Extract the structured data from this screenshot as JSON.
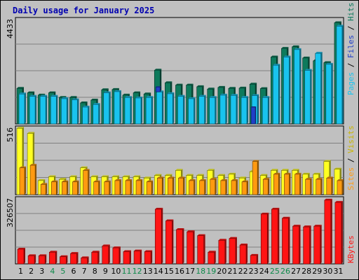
{
  "title": "Daily usage for January 2025",
  "colors": {
    "hits": "#0e7a5c",
    "files": "#19c3ee",
    "pages": "#1f3fc8",
    "visits": "#ffff22",
    "sites": "#ff9a10",
    "kbytes": "#ff1414",
    "weekend_label": "#0e8a4a",
    "weekday_label": "#000000",
    "grid": "#808080",
    "panel_bg": "#c0c0c0"
  },
  "labels": {
    "pages": "Pages",
    "files": "Files",
    "hits": "Hits",
    "sites": "Sites",
    "visits": "Visits",
    "kbytes": "KBytes",
    "sep": " / "
  },
  "chart_data": [
    {
      "type": "bar",
      "title": "Daily usage for January 2025",
      "ymax_label": "4433",
      "ylim": [
        0,
        4433
      ],
      "categories": [
        "1",
        "2",
        "3",
        "4",
        "5",
        "6",
        "7",
        "8",
        "9",
        "10",
        "11",
        "12",
        "13",
        "14",
        "15",
        "16",
        "17",
        "18",
        "19",
        "20",
        "21",
        "22",
        "23",
        "24",
        "25",
        "26",
        "27",
        "28",
        "29",
        "30",
        "31"
      ],
      "weekend_days": [
        "4",
        "5",
        "11",
        "12",
        "18",
        "19",
        "25",
        "26"
      ],
      "series": [
        {
          "name": "Hits",
          "values": [
            1520,
            1330,
            1230,
            1330,
            1130,
            1130,
            900,
            1020,
            1460,
            1470,
            1230,
            1330,
            1280,
            2300,
            1760,
            1660,
            1660,
            1590,
            1490,
            1560,
            1520,
            1530,
            1700,
            1510,
            2860,
            3230,
            3300,
            2820,
            2700,
            2620,
            4330
          ]
        },
        {
          "name": "Files",
          "values": [
            1280,
            1180,
            1180,
            1180,
            1080,
            1030,
            720,
            830,
            1330,
            1380,
            1130,
            1110,
            1130,
            1370,
            1290,
            1180,
            1080,
            1180,
            1130,
            1230,
            1220,
            1130,
            1210,
            1130,
            2510,
            2860,
            3180,
            2290,
            3020,
            2550,
            4180
          ]
        },
        {
          "name": "Pages",
          "values": [
            0,
            0,
            0,
            0,
            0,
            0,
            0,
            0,
            0,
            0,
            0,
            0,
            0,
            1580,
            0,
            0,
            0,
            0,
            0,
            0,
            0,
            0,
            720,
            0,
            0,
            0,
            0,
            0,
            0,
            0,
            0
          ]
        }
      ]
    },
    {
      "type": "bar",
      "ymax_label": "516",
      "ylim": [
        0,
        516
      ],
      "categories": [
        "1",
        "2",
        "3",
        "4",
        "5",
        "6",
        "7",
        "8",
        "9",
        "10",
        "11",
        "12",
        "13",
        "14",
        "15",
        "16",
        "17",
        "18",
        "19",
        "20",
        "21",
        "22",
        "23",
        "24",
        "25",
        "26",
        "27",
        "28",
        "29",
        "30",
        "31"
      ],
      "series": [
        {
          "name": "Visits",
          "values": [
            520,
            480,
            110,
            140,
            120,
            140,
            210,
            140,
            140,
            140,
            140,
            140,
            130,
            150,
            150,
            190,
            150,
            150,
            190,
            150,
            160,
            130,
            180,
            150,
            190,
            190,
            190,
            160,
            160,
            260,
            200
          ]
        },
        {
          "name": "Sites",
          "values": [
            210,
            230,
            80,
            100,
            100,
            100,
            190,
            100,
            100,
            110,
            110,
            110,
            100,
            130,
            130,
            130,
            110,
            110,
            120,
            110,
            110,
            100,
            260,
            120,
            160,
            160,
            160,
            120,
            120,
            130,
            110
          ]
        }
      ]
    },
    {
      "type": "bar",
      "ymax_label": "326507",
      "ylim": [
        0,
        326507
      ],
      "categories": [
        "1",
        "2",
        "3",
        "4",
        "5",
        "6",
        "7",
        "8",
        "9",
        "10",
        "11",
        "12",
        "13",
        "14",
        "15",
        "16",
        "17",
        "18",
        "19",
        "20",
        "21",
        "22",
        "23",
        "24",
        "25",
        "26",
        "27",
        "28",
        "29",
        "30",
        "31"
      ],
      "series": [
        {
          "name": "KBytes",
          "values": [
            78000,
            43000,
            43000,
            62000,
            38000,
            55000,
            32000,
            62000,
            95000,
            85000,
            65000,
            68000,
            65000,
            290000,
            228000,
            182000,
            170000,
            150000,
            62000,
            125000,
            135000,
            100000,
            45000,
            264000,
            290000,
            242000,
            200000,
            196000,
            200000,
            338000,
            326000
          ]
        }
      ]
    }
  ]
}
